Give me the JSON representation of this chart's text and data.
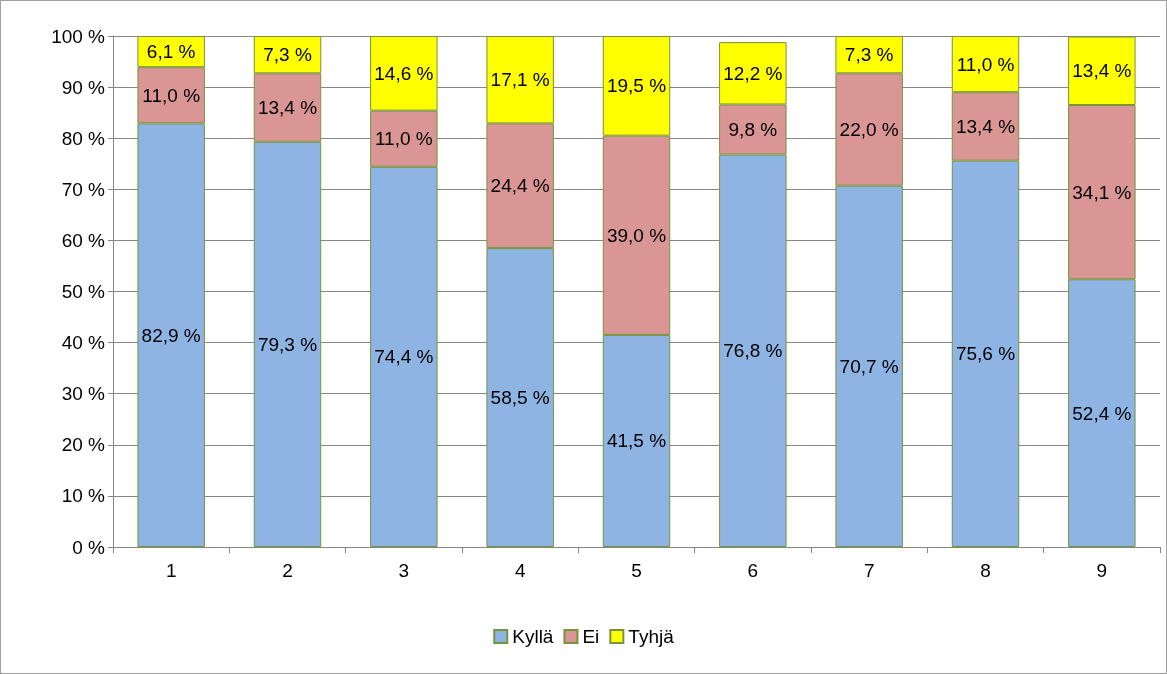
{
  "chart_data": {
    "type": "bar",
    "stacked": true,
    "categories": [
      "1",
      "2",
      "3",
      "4",
      "5",
      "6",
      "7",
      "8",
      "9"
    ],
    "series": [
      {
        "name": "Kyllä",
        "color": "#8eb4e3",
        "values": [
          82.9,
          79.3,
          74.4,
          58.5,
          41.5,
          76.8,
          70.7,
          75.6,
          52.4
        ],
        "value_labels": [
          "82,9 %",
          "79,3 %",
          "74,4 %",
          "58,5 %",
          "41,5 %",
          "76,8 %",
          "70,7 %",
          "75,6 %",
          "52,4 %"
        ]
      },
      {
        "name": "Ei",
        "color": "#d99694",
        "values": [
          11.0,
          13.4,
          11.0,
          24.4,
          39.0,
          9.8,
          22.0,
          13.4,
          34.1
        ],
        "value_labels": [
          "11,0 %",
          "13,4 %",
          "11,0 %",
          "24,4 %",
          "39,0 %",
          "9,8 %",
          "22,0 %",
          "13,4 %",
          "34,1 %"
        ]
      },
      {
        "name": "Tyhjä",
        "color": "#ffff00",
        "values": [
          6.1,
          7.3,
          14.6,
          17.1,
          19.5,
          12.2,
          7.3,
          11.0,
          13.4
        ],
        "value_labels": [
          "6,1 %",
          "7,3 %",
          "14,6 %",
          "17,1 %",
          "19,5 %",
          "12,2 %",
          "7,3 %",
          "11,0 %",
          "13,4 %"
        ]
      }
    ],
    "ylim": [
      0,
      100
    ],
    "yticks": [
      {
        "value": 0,
        "label": "0 %"
      },
      {
        "value": 10,
        "label": "10 %"
      },
      {
        "value": 20,
        "label": "20 %"
      },
      {
        "value": 30,
        "label": "30 %"
      },
      {
        "value": 40,
        "label": "40 %"
      },
      {
        "value": 50,
        "label": "50 %"
      },
      {
        "value": 60,
        "label": "60 %"
      },
      {
        "value": 70,
        "label": "70 %"
      },
      {
        "value": 80,
        "label": "80 %"
      },
      {
        "value": 90,
        "label": "90 %"
      },
      {
        "value": 100,
        "label": "100 %"
      }
    ],
    "grid": "y",
    "legend": "bottom"
  }
}
